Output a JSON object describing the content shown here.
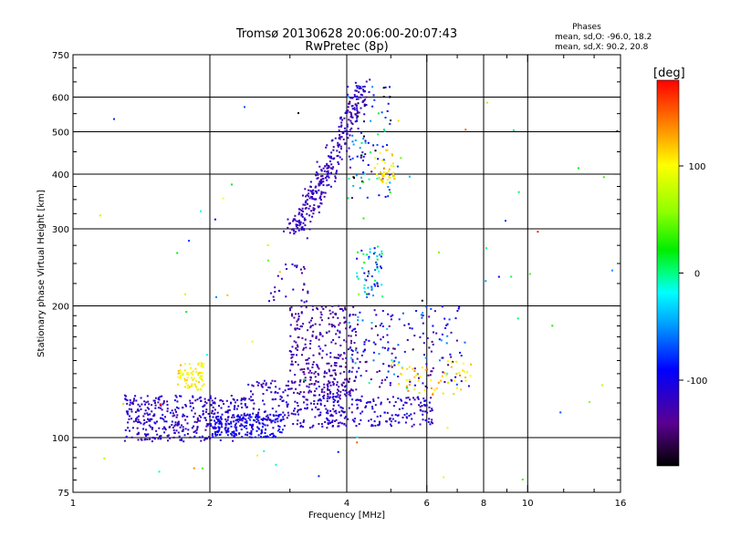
{
  "chart_data": {
    "type": "scatter",
    "title": "Tromsø 20130628 20:06:00-20:07:43",
    "subtitle": "RwPretec (8p)",
    "xlabel": "Frequency [MHz]",
    "ylabel": "Stationary phase Virtual Height [km]",
    "x_scale": "log",
    "y_scale": "log",
    "xlim": [
      1,
      16
    ],
    "ylim": [
      75,
      750
    ],
    "x_ticks": [
      1,
      2,
      4,
      6,
      8,
      10,
      16
    ],
    "x_tick_labels": [
      "1",
      "2",
      "4",
      "6",
      "8",
      "10",
      "16"
    ],
    "x_minor_ticks": [
      3,
      5,
      7,
      9,
      12,
      14
    ],
    "y_ticks": [
      75,
      100,
      200,
      300,
      400,
      500,
      600,
      750
    ],
    "y_tick_labels": [
      "75",
      "100",
      "200",
      "300",
      "400",
      "500",
      "600",
      "750"
    ],
    "y_minor_ticks": [
      80,
      85,
      90,
      95,
      110,
      120,
      130,
      140,
      150,
      160,
      170,
      180,
      190,
      225,
      250,
      275,
      325,
      350,
      375,
      450,
      550,
      650,
      700
    ],
    "grid_x": [
      2,
      4,
      6,
      8,
      10
    ],
    "grid_y": [
      100,
      200,
      300,
      400,
      500,
      600
    ],
    "stats": {
      "heading": "Phases",
      "line_o": "mean, sd,O: -96.0, 18.2",
      "line_x": "mean, sd,X:  90.2, 20.8"
    },
    "colorbar": {
      "label": "[deg]",
      "range": [
        -180,
        180
      ],
      "ticks": [
        100,
        0,
        -100
      ],
      "tick_labels": [
        "100",
        "0",
        "-100"
      ]
    },
    "clusters": [
      {
        "f": [
          1.3,
          2.4
        ],
        "h": [
          98,
          125
        ],
        "n": 400,
        "phase": -115,
        "spread": 20
      },
      {
        "f": [
          2.0,
          2.9
        ],
        "h": [
          100,
          113
        ],
        "n": 180,
        "phase": -95,
        "spread": 12
      },
      {
        "f": [
          1.7,
          1.95
        ],
        "h": [
          128,
          148
        ],
        "n": 70,
        "phase": 100,
        "spread": 18
      },
      {
        "f": [
          2.4,
          4.0
        ],
        "h": [
          105,
          135
        ],
        "n": 220,
        "phase": -115,
        "spread": 18
      },
      {
        "f": [
          3.0,
          4.2
        ],
        "h": [
          125,
          200
        ],
        "n": 300,
        "phase": -130,
        "spread": 18
      },
      {
        "f": [
          3.5,
          6.2
        ],
        "h": [
          106,
          125
        ],
        "n": 180,
        "phase": -110,
        "spread": 20
      },
      {
        "f": [
          4.0,
          7.2
        ],
        "h": [
          130,
          200
        ],
        "n": 180,
        "phase": -100,
        "spread": 60
      },
      {
        "f": [
          5.0,
          7.5
        ],
        "h": [
          125,
          150
        ],
        "n": 60,
        "phase": 110,
        "spread": 25
      },
      {
        "f": [
          4.2,
          4.8
        ],
        "h": [
          210,
          275
        ],
        "n": 60,
        "phase": -60,
        "spread": 90
      },
      {
        "f": [
          4.0,
          5.0
        ],
        "h": [
          350,
          640
        ],
        "n": 110,
        "phase": -90,
        "spread": 110
      },
      {
        "f": [
          4.6,
          5.1
        ],
        "h": [
          380,
          460
        ],
        "n": 40,
        "phase": 110,
        "spread": 15
      },
      {
        "f": [
          2.7,
          3.3
        ],
        "h": [
          200,
          250
        ],
        "n": 30,
        "phase": -120,
        "spread": 20
      },
      {
        "f": [
          1.1,
          16.0
        ],
        "h": [
          78,
          620
        ],
        "n": 70,
        "phase": 0,
        "spread": 170
      }
    ],
    "curve": {
      "f0": 3.05,
      "f1": 4.35,
      "h0": 300,
      "h1": 640,
      "n": 320,
      "width": 0.045,
      "phase": -120,
      "spread": 15
    }
  }
}
